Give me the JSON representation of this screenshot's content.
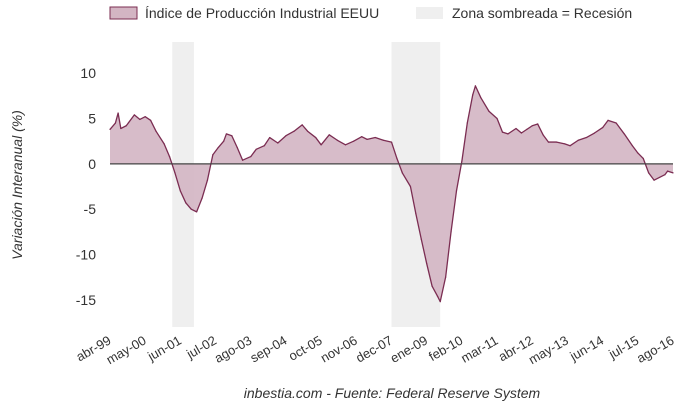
{
  "chart_data": {
    "type": "area",
    "legend": {
      "series_label": "Índice de Producción Industrial EEUU",
      "recession_label": "Zona sombreada = Recesión",
      "placement": "top"
    },
    "ylabel": "Variación Interanual (%)",
    "source": "inbestia.com - Fuente: Federal Reserve System",
    "ylim": [
      -18,
      13
    ],
    "yticks": [
      10,
      5,
      0,
      -5,
      -10,
      -15
    ],
    "xlim": [
      "1999-04",
      "2016-08"
    ],
    "xtick_labels": [
      {
        "date": "1999-04",
        "label": "abr-99"
      },
      {
        "date": "2000-05",
        "label": "may-00"
      },
      {
        "date": "2001-06",
        "label": "jun-01"
      },
      {
        "date": "2002-07",
        "label": "jul-02"
      },
      {
        "date": "2003-08",
        "label": "ago-03"
      },
      {
        "date": "2004-09",
        "label": "sep-04"
      },
      {
        "date": "2005-10",
        "label": "oct-05"
      },
      {
        "date": "2006-11",
        "label": "nov-06"
      },
      {
        "date": "2007-12",
        "label": "dec-07"
      },
      {
        "date": "2009-01",
        "label": "ene-09"
      },
      {
        "date": "2010-02",
        "label": "feb-10"
      },
      {
        "date": "2011-03",
        "label": "mar-11"
      },
      {
        "date": "2012-04",
        "label": "abr-12"
      },
      {
        "date": "2013-05",
        "label": "may-13"
      },
      {
        "date": "2014-06",
        "label": "jun-14"
      },
      {
        "date": "2015-07",
        "label": "jul-15"
      },
      {
        "date": "2016-08",
        "label": "ago-16"
      }
    ],
    "recessions": [
      {
        "start": "2001-03",
        "end": "2001-11"
      },
      {
        "start": "2007-12",
        "end": "2009-06"
      }
    ],
    "series": [
      {
        "name": "Índice de Producción Industrial EEUU",
        "points": [
          [
            "1999-04",
            3.8
          ],
          [
            "1999-06",
            4.5
          ],
          [
            "1999-07",
            5.6
          ],
          [
            "1999-08",
            3.9
          ],
          [
            "1999-10",
            4.2
          ],
          [
            "2000-01",
            5.4
          ],
          [
            "2000-03",
            4.9
          ],
          [
            "2000-05",
            5.2
          ],
          [
            "2000-07",
            4.8
          ],
          [
            "2000-09",
            3.6
          ],
          [
            "2000-12",
            2.2
          ],
          [
            "2001-02",
            0.8
          ],
          [
            "2001-04",
            -1.0
          ],
          [
            "2001-06",
            -3.0
          ],
          [
            "2001-08",
            -4.3
          ],
          [
            "2001-10",
            -5.0
          ],
          [
            "2001-12",
            -5.3
          ],
          [
            "2002-02",
            -3.8
          ],
          [
            "2002-04",
            -1.8
          ],
          [
            "2002-06",
            1.0
          ],
          [
            "2002-08",
            1.8
          ],
          [
            "2002-10",
            2.5
          ],
          [
            "2002-11",
            3.3
          ],
          [
            "2003-01",
            3.1
          ],
          [
            "2003-03",
            1.8
          ],
          [
            "2003-05",
            0.4
          ],
          [
            "2003-08",
            0.8
          ],
          [
            "2003-10",
            1.6
          ],
          [
            "2004-01",
            2.0
          ],
          [
            "2004-03",
            2.9
          ],
          [
            "2004-06",
            2.3
          ],
          [
            "2004-09",
            3.1
          ],
          [
            "2004-12",
            3.6
          ],
          [
            "2005-03",
            4.3
          ],
          [
            "2005-05",
            3.6
          ],
          [
            "2005-08",
            2.9
          ],
          [
            "2005-10",
            2.1
          ],
          [
            "2006-01",
            3.2
          ],
          [
            "2006-04",
            2.6
          ],
          [
            "2006-07",
            2.1
          ],
          [
            "2006-10",
            2.5
          ],
          [
            "2007-01",
            3.0
          ],
          [
            "2007-03",
            2.7
          ],
          [
            "2007-06",
            2.9
          ],
          [
            "2007-09",
            2.6
          ],
          [
            "2007-12",
            2.4
          ],
          [
            "2008-02",
            0.6
          ],
          [
            "2008-04",
            -1.0
          ],
          [
            "2008-07",
            -2.5
          ],
          [
            "2008-09",
            -5.5
          ],
          [
            "2008-11",
            -8.3
          ],
          [
            "2009-01",
            -11.0
          ],
          [
            "2009-03",
            -13.5
          ],
          [
            "2009-05",
            -14.6
          ],
          [
            "2009-06",
            -15.2
          ],
          [
            "2009-08",
            -12.5
          ],
          [
            "2009-10",
            -7.5
          ],
          [
            "2009-12",
            -3.0
          ],
          [
            "2010-02",
            0.3
          ],
          [
            "2010-04",
            4.5
          ],
          [
            "2010-06",
            7.6
          ],
          [
            "2010-07",
            8.6
          ],
          [
            "2010-09",
            7.3
          ],
          [
            "2010-12",
            5.8
          ],
          [
            "2011-03",
            5.0
          ],
          [
            "2011-05",
            3.5
          ],
          [
            "2011-07",
            3.3
          ],
          [
            "2011-10",
            3.9
          ],
          [
            "2011-12",
            3.4
          ],
          [
            "2012-02",
            3.8
          ],
          [
            "2012-04",
            4.2
          ],
          [
            "2012-06",
            4.4
          ],
          [
            "2012-08",
            3.2
          ],
          [
            "2012-10",
            2.4
          ],
          [
            "2013-01",
            2.4
          ],
          [
            "2013-04",
            2.2
          ],
          [
            "2013-06",
            2.0
          ],
          [
            "2013-09",
            2.6
          ],
          [
            "2013-12",
            2.9
          ],
          [
            "2014-03",
            3.4
          ],
          [
            "2014-06",
            4.0
          ],
          [
            "2014-08",
            4.8
          ],
          [
            "2014-11",
            4.5
          ],
          [
            "2015-02",
            3.3
          ],
          [
            "2015-05",
            2.0
          ],
          [
            "2015-07",
            1.2
          ],
          [
            "2015-09",
            0.6
          ],
          [
            "2015-11",
            -1.0
          ],
          [
            "2016-01",
            -1.8
          ],
          [
            "2016-03",
            -1.5
          ],
          [
            "2016-05",
            -1.2
          ],
          [
            "2016-06",
            -0.8
          ],
          [
            "2016-08",
            -1.0
          ]
        ]
      }
    ],
    "colors": {
      "line": "#7b2d52",
      "fill": "#d3b5c3",
      "recession": "#efefef",
      "zero_line": "#444444"
    },
    "grid": false
  }
}
